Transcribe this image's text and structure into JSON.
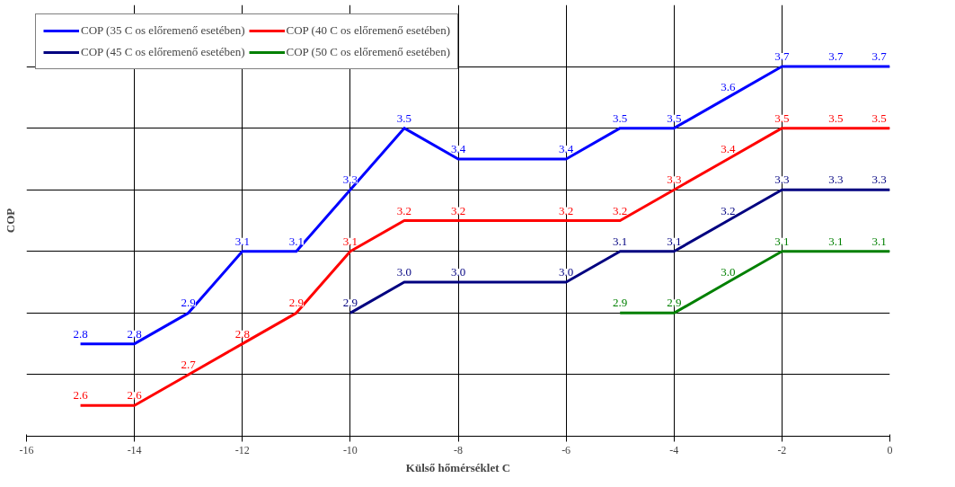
{
  "chart_data": {
    "type": "line",
    "xlabel": "Külső hőmérséklet C",
    "ylabel": "COP",
    "xlim": [
      -16,
      0
    ],
    "xticks": [
      -16,
      -14,
      -12,
      -10,
      -8,
      -6,
      -4,
      -2,
      0
    ],
    "ylim": [
      2.5,
      3.9
    ],
    "yticks": [
      {
        "value": 2.5,
        "label": null
      },
      {
        "value": 2.7,
        "label": null
      },
      {
        "value": 2.9,
        "label": null
      },
      {
        "value": 3.1,
        "label": null
      },
      {
        "value": 3.3,
        "label": null
      },
      {
        "value": 3.5,
        "label": null
      },
      {
        "value": 3.7,
        "label": null
      }
    ],
    "tick_labels": "x",
    "grid": true,
    "legend": "top left",
    "marker": "none",
    "series": [
      {
        "name": "COP (35 C os előremenő esetében)",
        "color": "#0000ff",
        "x": [
          -15,
          -14,
          -13,
          -12,
          -11,
          -10,
          -9,
          -8,
          -6,
          -5,
          -4,
          -3,
          -2,
          -1,
          0
        ],
        "values": [
          2.8,
          2.8,
          2.9,
          3.1,
          3.1,
          3.3,
          3.5,
          3.4,
          3.4,
          3.5,
          3.5,
          3.6,
          3.7,
          3.7,
          3.7
        ],
        "value_labels": [
          "2.8",
          "2.8",
          "2.9",
          "3.1",
          "3.1",
          "3.3",
          "3.5",
          "3.4",
          "3.4",
          "3.5",
          "3.5",
          "3.6",
          "3.7",
          "3.7",
          "3.7"
        ]
      },
      {
        "name": "COP (40 C os előremenő esetében)",
        "color": "#ff0000",
        "x": [
          -15,
          -14,
          -13,
          -12,
          -11,
          -10,
          -9,
          -8,
          -6,
          -5,
          -4,
          -3,
          -2,
          -1,
          0
        ],
        "values": [
          2.6,
          2.6,
          2.7,
          2.8,
          2.9,
          3.1,
          3.2,
          3.2,
          3.2,
          3.2,
          3.3,
          3.4,
          3.5,
          3.5,
          3.5
        ],
        "value_labels": [
          "2.6",
          "2.6",
          "2.7",
          "2.8",
          "2.9",
          "3.1",
          "3.2",
          "3.2",
          "3.2",
          "3.2",
          "3.3",
          "3.4",
          "3.5",
          "3.5",
          "3.5"
        ]
      },
      {
        "name": "COP (45 C os előremenő esetében)",
        "color": "#000080",
        "x": [
          -10,
          -9,
          -8,
          -6,
          -5,
          -4,
          -3,
          -2,
          -1,
          0
        ],
        "values": [
          2.9,
          3.0,
          3.0,
          3.0,
          3.1,
          3.1,
          3.2,
          3.3,
          3.3,
          3.3
        ],
        "value_labels": [
          "2.9",
          "3.0",
          "3.0",
          "3.0",
          "3.1",
          "3.1",
          "3.2",
          "3.3",
          "3.3",
          "3.3"
        ]
      },
      {
        "name": "COP (50 C os előremenő esetében)",
        "color": "#008000",
        "x": [
          -5,
          -4,
          -3,
          -2,
          -1,
          0
        ],
        "values": [
          2.9,
          2.9,
          3.0,
          3.1,
          3.1,
          3.1
        ],
        "value_labels": [
          "2.9",
          "2.9",
          "3.0",
          "3.1",
          "3.1",
          "3.1"
        ]
      }
    ]
  }
}
